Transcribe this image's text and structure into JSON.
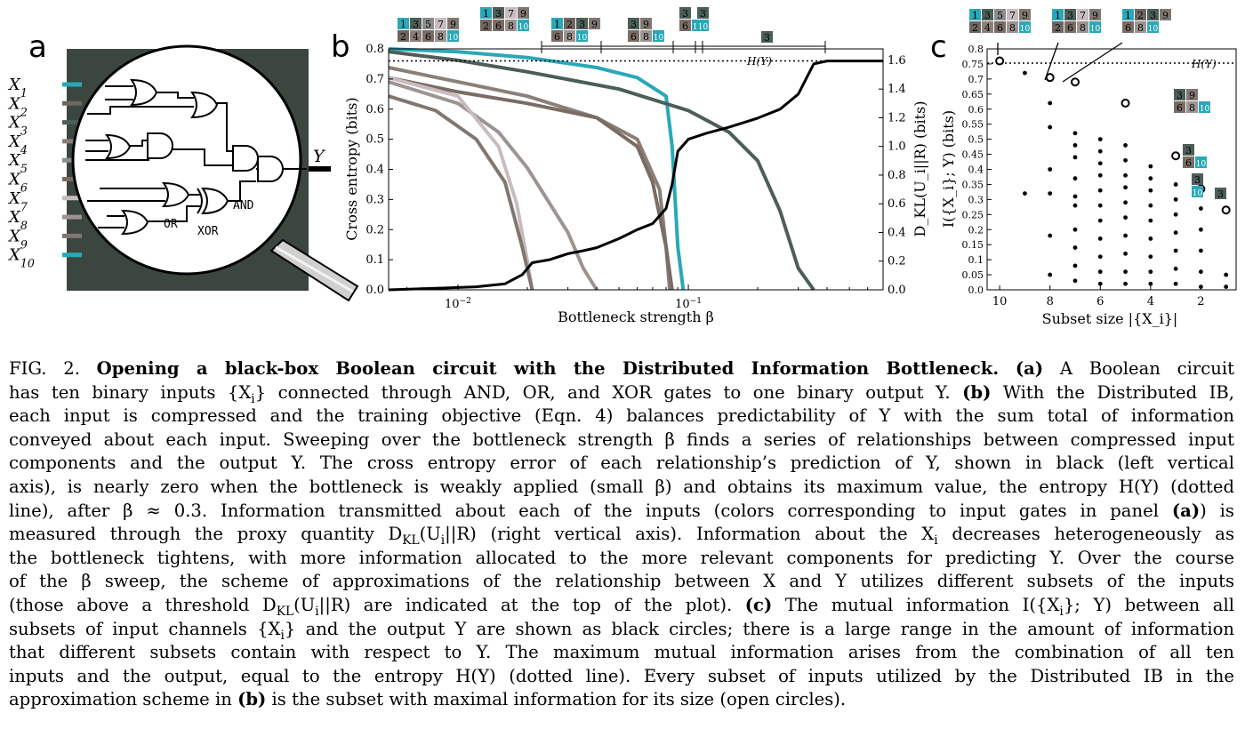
{
  "panel_a": {
    "letter": "a",
    "inputs": [
      "X_1",
      "X_2",
      "X_3",
      "X_4",
      "X_5",
      "X_6",
      "X_7",
      "X_8",
      "X_9",
      "X_10"
    ],
    "input_colors": [
      "#2aa8b8",
      "#6e6660",
      "#4c5e58",
      "#8a8078",
      "#8c8c8c",
      "#7a6c64",
      "#c8bcc0",
      "#9c9490",
      "#807870",
      "#2aa8b8"
    ],
    "gate_labels": [
      "AND",
      "OR",
      "XOR"
    ],
    "output": "Y",
    "board_color": "#3b463f"
  },
  "panel_b": {
    "letter": "b",
    "xlabel": "Bottleneck strength β",
    "ylabel_left": "Cross entropy (bits)",
    "ylabel_right": "D_KL(U_i||R) (bits)",
    "hline_label": "H(Y)",
    "x_ticks": [
      "10^−2",
      "10^−1"
    ],
    "y_left_ticks": [
      "0.0",
      "0.1",
      "0.2",
      "0.3",
      "0.4",
      "0.5",
      "0.6",
      "0.7",
      "0.8"
    ],
    "y_right_ticks": [
      "0.0",
      "0.2",
      "0.4",
      "0.6",
      "0.8",
      "1.0",
      "1.2",
      "1.4",
      "1.6"
    ],
    "subset_rows": [
      {
        "top": [
          "1",
          "3",
          "5",
          "7",
          "9"
        ],
        "bottom": [
          "2",
          "4",
          "6",
          "8",
          "10"
        ]
      },
      {
        "top": [
          "1",
          "3",
          "7",
          "9"
        ],
        "bottom": [
          "2",
          "6",
          "8",
          "10"
        ]
      },
      {
        "top": [
          "1",
          "2",
          "3",
          "9"
        ],
        "bottom": [
          "6",
          "8",
          "10"
        ]
      },
      {
        "top": [
          "3",
          "9"
        ],
        "bottom": [
          "6",
          "8",
          "10"
        ]
      },
      {
        "top": [
          "3"
        ],
        "bottom": [
          "6",
          "10"
        ]
      },
      {
        "top": [
          "3"
        ],
        "bottom": [
          "10"
        ]
      },
      {
        "top": [
          "3"
        ],
        "bottom": []
      }
    ]
  },
  "panel_c": {
    "letter": "c",
    "xlabel": "Subset size |{X_i}|",
    "ylabel": "I({X_i}; Y) (bits)",
    "hline_label": "H(Y)",
    "x_ticks": [
      "10",
      "8",
      "6",
      "4",
      "2"
    ],
    "y_ticks": [
      "0.0",
      "0.05",
      "0.1",
      "0.15",
      "0.2",
      "0.25",
      "0.3",
      "0.35",
      "0.4",
      "0.45",
      "0.5",
      "0.55",
      "0.6",
      "0.65",
      "0.7",
      "0.75",
      "0.8"
    ]
  },
  "chart_data": [
    {
      "type": "line",
      "panel": "b",
      "xlabel": "Bottleneck strength β",
      "ylabel": "Cross entropy (bits)",
      "ylabel_right": "D_KL(U_i||R) (bits)",
      "xscale": "log",
      "xlim": [
        0.005,
        0.7
      ],
      "ylim": [
        0,
        0.8
      ],
      "ylim_right": [
        0,
        1.68
      ],
      "hline": {
        "label": "H(Y)",
        "y": 0.76
      },
      "series": [
        {
          "color": "#000000",
          "axis": "left",
          "x": [
            0.005,
            0.008,
            0.012,
            0.016,
            0.019,
            0.021,
            0.025,
            0.03,
            0.035,
            0.04,
            0.05,
            0.06,
            0.07,
            0.08,
            0.085,
            0.09,
            0.1,
            0.12,
            0.15,
            0.2,
            0.25,
            0.3,
            0.35,
            0.4,
            0.5,
            0.7
          ],
          "y": [
            0.0,
            0.005,
            0.01,
            0.02,
            0.05,
            0.09,
            0.1,
            0.12,
            0.13,
            0.14,
            0.17,
            0.2,
            0.22,
            0.27,
            0.35,
            0.46,
            0.5,
            0.52,
            0.54,
            0.57,
            0.6,
            0.65,
            0.75,
            0.76,
            0.76,
            0.76
          ]
        },
        {
          "color": "#2aa8b8",
          "axis": "right",
          "x": [
            0.005,
            0.01,
            0.02,
            0.04,
            0.06,
            0.08,
            0.085,
            0.09,
            0.095
          ],
          "y": [
            1.68,
            1.66,
            1.62,
            1.55,
            1.48,
            1.35,
            1.0,
            0.3,
            0.0
          ]
        },
        {
          "color": "#4c5e58",
          "axis": "right",
          "x": [
            0.005,
            0.01,
            0.02,
            0.05,
            0.1,
            0.15,
            0.2,
            0.25,
            0.3,
            0.35
          ],
          "y": [
            1.66,
            1.6,
            1.52,
            1.4,
            1.25,
            1.1,
            0.9,
            0.55,
            0.15,
            0.0
          ]
        },
        {
          "color": "#8a8078",
          "axis": "right",
          "x": [
            0.005,
            0.01,
            0.02,
            0.04,
            0.06,
            0.075,
            0.08,
            0.083
          ],
          "y": [
            1.55,
            1.45,
            1.35,
            1.2,
            1.05,
            0.7,
            0.3,
            0.0
          ]
        },
        {
          "color": "#7a6c64",
          "axis": "right",
          "x": [
            0.005,
            0.01,
            0.02,
            0.04,
            0.06,
            0.07,
            0.08,
            0.085
          ],
          "y": [
            1.48,
            1.38,
            1.3,
            1.2,
            1.0,
            0.75,
            0.3,
            0.0
          ]
        },
        {
          "color": "#9c9490",
          "axis": "right",
          "x": [
            0.005,
            0.01,
            0.015,
            0.02,
            0.03,
            0.035,
            0.04
          ],
          "y": [
            1.45,
            1.3,
            1.1,
            0.85,
            0.4,
            0.15,
            0.0
          ]
        },
        {
          "color": "#c8bcc0",
          "axis": "right",
          "x": [
            0.005,
            0.01,
            0.015,
            0.018,
            0.02,
            0.021
          ],
          "y": [
            1.48,
            1.35,
            1.0,
            0.6,
            0.2,
            0.0
          ]
        },
        {
          "color": "#807870",
          "axis": "right",
          "x": [
            0.005,
            0.008,
            0.012,
            0.016,
            0.019,
            0.021
          ],
          "y": [
            1.35,
            1.25,
            1.05,
            0.75,
            0.3,
            0.0
          ]
        }
      ]
    },
    {
      "type": "scatter",
      "panel": "c",
      "xlabel": "Subset size |{X_i}|",
      "ylabel": "I({X_i}; Y) (bits)",
      "xlim": [
        10.5,
        0.6
      ],
      "ylim": [
        0,
        0.8
      ],
      "hline": {
        "label": "H(Y)",
        "y": 0.76
      },
      "open_circles": [
        {
          "x": 10,
          "y": 0.76
        },
        {
          "x": 8,
          "y": 0.705
        },
        {
          "x": 7,
          "y": 0.69
        },
        {
          "x": 5,
          "y": 0.62
        },
        {
          "x": 3,
          "y": 0.445
        },
        {
          "x": 2,
          "y": 0.335
        },
        {
          "x": 1,
          "y": 0.265
        }
      ],
      "dots": [
        {
          "x": 9,
          "y": 0.72
        },
        {
          "x": 9,
          "y": 0.32
        },
        {
          "x": 8,
          "y": 0.62
        },
        {
          "x": 8,
          "y": 0.54
        },
        {
          "x": 8,
          "y": 0.4
        },
        {
          "x": 8,
          "y": 0.32
        },
        {
          "x": 8,
          "y": 0.18
        },
        {
          "x": 8,
          "y": 0.05
        },
        {
          "x": 7,
          "y": 0.52
        },
        {
          "x": 7,
          "y": 0.48
        },
        {
          "x": 7,
          "y": 0.44
        },
        {
          "x": 7,
          "y": 0.37
        },
        {
          "x": 7,
          "y": 0.31
        },
        {
          "x": 7,
          "y": 0.28
        },
        {
          "x": 7,
          "y": 0.2
        },
        {
          "x": 7,
          "y": 0.14
        },
        {
          "x": 7,
          "y": 0.08
        },
        {
          "x": 7,
          "y": 0.03
        },
        {
          "x": 6,
          "y": 0.5
        },
        {
          "x": 6,
          "y": 0.46
        },
        {
          "x": 6,
          "y": 0.42
        },
        {
          "x": 6,
          "y": 0.38
        },
        {
          "x": 6,
          "y": 0.33
        },
        {
          "x": 6,
          "y": 0.28
        },
        {
          "x": 6,
          "y": 0.23
        },
        {
          "x": 6,
          "y": 0.17
        },
        {
          "x": 6,
          "y": 0.11
        },
        {
          "x": 6,
          "y": 0.06
        },
        {
          "x": 6,
          "y": 0.02
        },
        {
          "x": 5,
          "y": 0.48
        },
        {
          "x": 5,
          "y": 0.43
        },
        {
          "x": 5,
          "y": 0.38
        },
        {
          "x": 5,
          "y": 0.34
        },
        {
          "x": 5,
          "y": 0.29
        },
        {
          "x": 5,
          "y": 0.24
        },
        {
          "x": 5,
          "y": 0.18
        },
        {
          "x": 5,
          "y": 0.12
        },
        {
          "x": 5,
          "y": 0.06
        },
        {
          "x": 5,
          "y": 0.02
        },
        {
          "x": 4,
          "y": 0.41
        },
        {
          "x": 4,
          "y": 0.37
        },
        {
          "x": 4,
          "y": 0.33
        },
        {
          "x": 4,
          "y": 0.28
        },
        {
          "x": 4,
          "y": 0.23
        },
        {
          "x": 4,
          "y": 0.17
        },
        {
          "x": 4,
          "y": 0.11
        },
        {
          "x": 4,
          "y": 0.06
        },
        {
          "x": 4,
          "y": 0.02
        },
        {
          "x": 3,
          "y": 0.35
        },
        {
          "x": 3,
          "y": 0.3
        },
        {
          "x": 3,
          "y": 0.25
        },
        {
          "x": 3,
          "y": 0.19
        },
        {
          "x": 3,
          "y": 0.13
        },
        {
          "x": 3,
          "y": 0.07
        },
        {
          "x": 3,
          "y": 0.02
        },
        {
          "x": 2,
          "y": 0.27
        },
        {
          "x": 2,
          "y": 0.2
        },
        {
          "x": 2,
          "y": 0.13
        },
        {
          "x": 2,
          "y": 0.06
        },
        {
          "x": 2,
          "y": 0.01
        },
        {
          "x": 1,
          "y": 0.05
        },
        {
          "x": 1,
          "y": 0.01
        }
      ]
    }
  ],
  "caption": {
    "lines": [
      [
        "FIG. 2. ",
        "b:Opening a black-box Boolean circuit with the Distributed Information Bottleneck.",
        " ",
        "b:(a)",
        " A Boolean circuit"
      ],
      [
        "has ten binary inputs {X",
        "sub:i",
        "} connected through AND, OR, and XOR gates to one binary output Y. ",
        "b:(b)",
        " With the Distributed IB,"
      ],
      [
        "each input is compressed and the training objective (Eqn. 4) balances predictability of Y with the sum total of information"
      ],
      [
        "conveyed about each input. Sweeping over the bottleneck strength β finds a series of relationships between compressed input"
      ],
      [
        "components and the output Y. The cross entropy error of each relationship’s prediction of Y, shown in black (left vertical"
      ],
      [
        "axis), is nearly zero when the bottleneck is weakly applied (small β) and obtains its maximum value, the entropy H(Y) (dotted"
      ],
      [
        "line), after β ≈ 0.3. Information transmitted about each of the inputs (colors corresponding to input gates in panel ",
        "b:(a)",
        ") is"
      ],
      [
        "measured through the proxy quantity D",
        "sub:KL",
        "(U",
        "sub:i",
        "||R) (right vertical axis). Information about the X",
        "sub:i",
        " decreases heterogeneously as"
      ],
      [
        "the bottleneck tightens, with more information allocated to the more relevant components for predicting Y. Over the course"
      ],
      [
        "of the β sweep, the scheme of approximations of the relationship between X and Y utilizes different subsets of the inputs"
      ],
      [
        "(those above a threshold D",
        "sub:KL",
        "(U",
        "sub:i",
        "||R) are indicated at the top of the plot). ",
        "b:(c)",
        " The mutual information I({X",
        "sub:i",
        "}; Y) between all"
      ],
      [
        "subsets of input channels {X",
        "sub:i",
        "} and the output Y are shown as black circles; there is a large range in the amount of information"
      ],
      [
        "that different subsets contain with respect to Y. The maximum mutual information arises from the combination of all ten"
      ],
      [
        "inputs and the output, equal to the entropy H(Y) (dotted line). Every subset of inputs utilized by the Distributed IB in the"
      ],
      [
        "approximation scheme in ",
        "b:(b)",
        " is the subset with maximal information for its size (open circles)."
      ]
    ]
  }
}
